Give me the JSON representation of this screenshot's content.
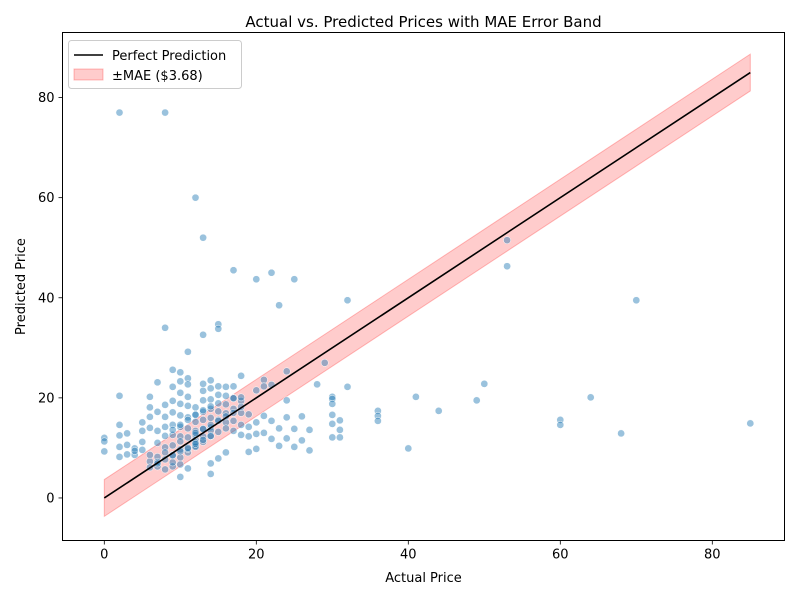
{
  "chart_data": {
    "type": "scatter",
    "title": "Actual vs. Predicted Prices with MAE Error Band",
    "xlabel": "Actual Price",
    "ylabel": "Predicted Price",
    "xlim": [
      -5.5,
      89.5
    ],
    "ylim": [
      -8.5,
      93
    ],
    "xticks": [
      0,
      20,
      40,
      60,
      80
    ],
    "yticks": [
      0,
      20,
      40,
      60,
      80
    ],
    "grid": false,
    "legend_position": "top-left",
    "mae": 3.68,
    "colors": {
      "points": "#1f77b4",
      "line": "#000000",
      "band": "#ff0000"
    },
    "series": [
      {
        "name": "Perfect Prediction",
        "type": "line",
        "x": [
          0,
          85
        ],
        "y": [
          0,
          85
        ]
      },
      {
        "name": "±MAE ($3.68)",
        "type": "band",
        "x": [
          0,
          85
        ],
        "lower": [
          -3.68,
          81.32
        ],
        "upper": [
          3.68,
          88.68
        ]
      },
      {
        "type": "scatter",
        "x": [
          2,
          8,
          12,
          13,
          17,
          22,
          25,
          20,
          23,
          32,
          15,
          15,
          8,
          13,
          11,
          53,
          53,
          70,
          29,
          28,
          24,
          21,
          18,
          32,
          41,
          50,
          49,
          44,
          64,
          60,
          60,
          68,
          85,
          40,
          0,
          0,
          0,
          2,
          2,
          2,
          3,
          3,
          4,
          4,
          5,
          5,
          5,
          6,
          6,
          6,
          6,
          7,
          7,
          7,
          7,
          8,
          8,
          8,
          8,
          8,
          9,
          9,
          9,
          9,
          9,
          9,
          10,
          10,
          10,
          10,
          10,
          10,
          10,
          11,
          11,
          11,
          11,
          11,
          11,
          12,
          12,
          12,
          12,
          12,
          12,
          13,
          13,
          13,
          13,
          13,
          13,
          14,
          14,
          14,
          14,
          14,
          14,
          15,
          15,
          15,
          15,
          15,
          16,
          16,
          16,
          16,
          16,
          17,
          17,
          17,
          17,
          17,
          18,
          18,
          18,
          18,
          19,
          19,
          19,
          20,
          20,
          20,
          21,
          21,
          21,
          22,
          22,
          22,
          23,
          23,
          24,
          24,
          24,
          25,
          25,
          26,
          26,
          27,
          27,
          30,
          30,
          30,
          30,
          31,
          31,
          31,
          36,
          36,
          36,
          9,
          10,
          10,
          11,
          14,
          14,
          15,
          16,
          7,
          9,
          10,
          11,
          12,
          13,
          14,
          9,
          11,
          12,
          13,
          14,
          10,
          12,
          8,
          6,
          7,
          8,
          3,
          2,
          4,
          5,
          6,
          7,
          2,
          9,
          10,
          11,
          12,
          13,
          14,
          15,
          16,
          17,
          17,
          18,
          18,
          16,
          15,
          14,
          13,
          12,
          11,
          10,
          9,
          8,
          7,
          6,
          14,
          13,
          12,
          11,
          10,
          9,
          20,
          19,
          30,
          30
        ],
        "y": [
          77,
          77,
          60,
          52,
          45.5,
          45,
          43.7,
          43.7,
          38.5,
          39.5,
          34.7,
          33.8,
          34,
          32.6,
          29.2,
          51.5,
          46.3,
          39.5,
          27,
          22.7,
          25.3,
          23.6,
          24.4,
          22.2,
          20.2,
          22.8,
          19.5,
          17.4,
          20.1,
          15.6,
          14.6,
          12.9,
          14.9,
          9.9,
          12,
          11.3,
          9.3,
          20.4,
          14.6,
          12.5,
          10.6,
          12.9,
          9.9,
          8.6,
          15.1,
          13.4,
          11.2,
          20.2,
          18.1,
          16.2,
          14,
          23.1,
          17.2,
          13.4,
          11,
          18.6,
          16.2,
          14.2,
          12.4,
          10.1,
          25.6,
          22.2,
          19.4,
          17.1,
          14.6,
          12.6,
          25.1,
          23.3,
          21,
          18.8,
          16.5,
          14.2,
          12.3,
          23.9,
          22.7,
          20.2,
          18.4,
          16.1,
          13.9,
          18.1,
          16.7,
          15.2,
          13.4,
          11.7,
          10.4,
          22.8,
          21.4,
          19.5,
          17.2,
          15.6,
          13.7,
          23.5,
          21.9,
          19.7,
          17.8,
          16,
          14.1,
          22.3,
          20.6,
          18.9,
          17.3,
          15.6,
          22.2,
          20.4,
          18.7,
          16.9,
          15.1,
          22.3,
          20,
          17.8,
          15.4,
          13.4,
          19.4,
          17,
          14.6,
          12.6,
          16.7,
          14.2,
          12.3,
          21.5,
          15.1,
          12.8,
          22.3,
          16.4,
          13,
          22.6,
          15.4,
          11.8,
          13.9,
          10.4,
          19.5,
          16.1,
          11.9,
          13.8,
          10.2,
          16.3,
          11.5,
          13.6,
          9.5,
          20.2,
          16.6,
          14.8,
          12.1,
          15.5,
          13.6,
          12.1,
          17.4,
          16.4,
          15.4,
          6.3,
          6.7,
          4.2,
          5.9,
          6.9,
          4.8,
          7.9,
          9.1,
          6.3,
          7.1,
          8.1,
          9.1,
          10.2,
          11.2,
          12.3,
          8.6,
          9.8,
          11.1,
          12.3,
          13.5,
          9.7,
          12.6,
          5.7,
          7.3,
          8.2,
          9.1,
          8.7,
          8.2,
          9.4,
          9.6,
          8.6,
          7.2,
          10.2,
          10.5,
          11.3,
          12.1,
          13,
          13.8,
          14.6,
          15.4,
          16.3,
          17,
          19.9,
          18.2,
          20.1,
          13.9,
          13.2,
          12.4,
          11.6,
          10.8,
          10,
          9.3,
          8.5,
          7.7,
          6.9,
          6.1,
          18.3,
          17.5,
          16.6,
          15.6,
          14.6,
          13.6,
          9.8,
          9.2,
          19.8,
          18.8
        ]
      }
    ]
  }
}
